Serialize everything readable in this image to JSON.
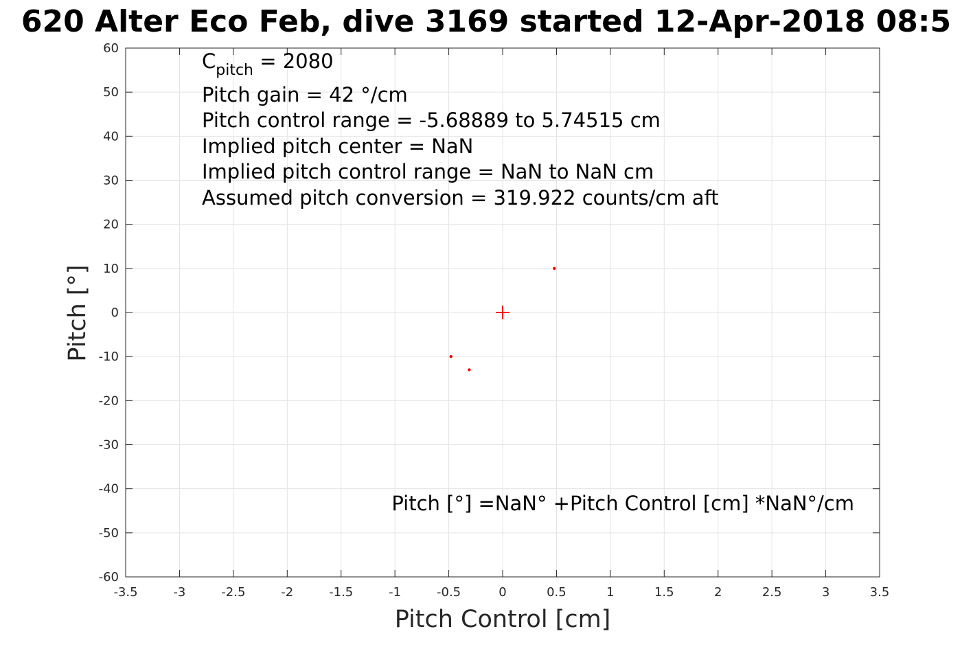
{
  "chart_data": {
    "type": "scatter",
    "title": "620 Alter Eco Feb, dive 3169 started 12-Apr-2018 08:5",
    "xlabel": "Pitch Control [cm]",
    "ylabel": "Pitch [°]",
    "xlim": [
      -3.5,
      3.5
    ],
    "ylim": [
      -60,
      60
    ],
    "xticks": [
      -3.5,
      -3,
      -2.5,
      -2,
      -1.5,
      -1,
      -0.5,
      0,
      0.5,
      1,
      1.5,
      2,
      2.5,
      3,
      3.5
    ],
    "yticks": [
      60,
      50,
      40,
      30,
      20,
      10,
      0,
      -10,
      -20,
      -30,
      -40,
      -50,
      -60
    ],
    "grid": true,
    "marker_color": "#ff0000",
    "series": [
      {
        "marker": "dot",
        "points": [
          {
            "x": 0.48,
            "y": 10
          },
          {
            "x": -0.48,
            "y": -10
          },
          {
            "x": -0.31,
            "y": -13
          }
        ]
      },
      {
        "marker": "plus",
        "points": [
          {
            "x": 0,
            "y": 0
          }
        ]
      }
    ],
    "annotations": {
      "cpitch": {
        "symbol": "C",
        "subscript": "pitch",
        "value_text": " = 2080"
      },
      "lines": [
        "Pitch gain = 42 °/cm",
        "Pitch control range = -5.68889 to 5.74515 cm",
        "Implied pitch center = NaN",
        "Implied pitch control range = NaN to NaN cm",
        "Assumed pitch conversion = 319.922 counts/cm aft"
      ],
      "equation": "Pitch [°] =NaN° +Pitch Control [cm] *NaN°/cm"
    }
  }
}
